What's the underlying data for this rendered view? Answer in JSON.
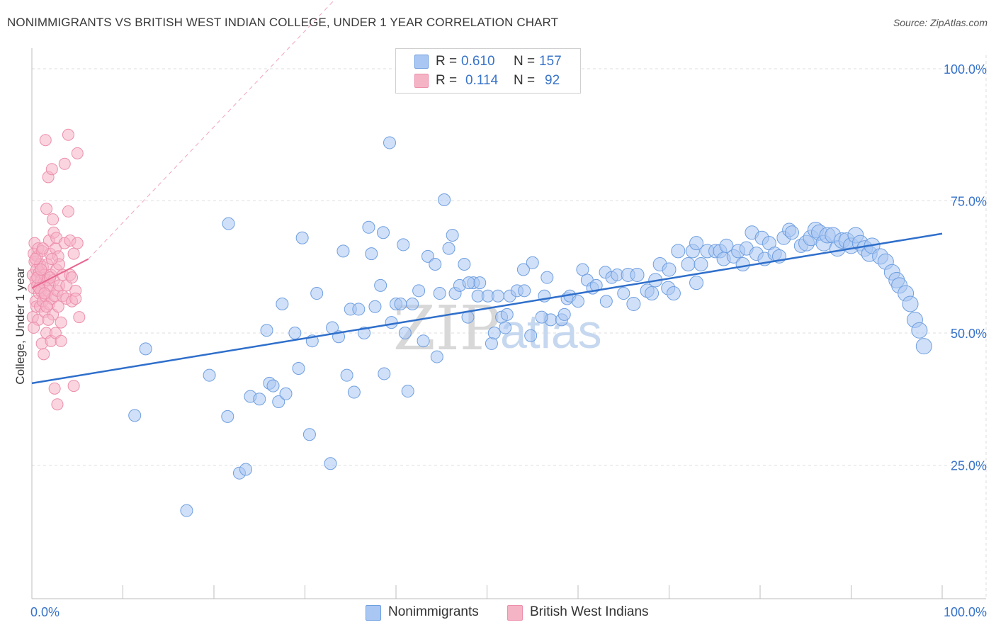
{
  "title": "NONIMMIGRANTS VS BRITISH WEST INDIAN COLLEGE, UNDER 1 YEAR CORRELATION CHART",
  "source": "Source: ZipAtlas.com",
  "watermark": "ZIPatlas",
  "legend": {
    "rows": [
      {
        "r_label": "R =",
        "r_value": "0.610",
        "n_label": "N =",
        "n_value": "157"
      },
      {
        "r_label": "R =",
        "r_value": "0.114",
        "n_label": "N =",
        "n_value": "92"
      }
    ]
  },
  "bottom_legend": [
    "Nonimmigrants",
    "British West Indians"
  ],
  "colors": {
    "blue_fill": "#a9c7f2",
    "blue_stroke": "#6f9fe0",
    "blue_line": "#2f6fcb",
    "pink_fill": "#f5b3c6",
    "pink_stroke": "#ec8fab",
    "pink_line": "#e8668f",
    "tick_text": "#3873c9",
    "grid": "#dedede"
  },
  "chart_data": {
    "type": "scatter",
    "title": "NONIMMIGRANTS VS BRITISH WEST INDIAN COLLEGE, UNDER 1 YEAR CORRELATION CHART",
    "xlabel": "",
    "ylabel": "College, Under 1 year",
    "xlim": [
      0,
      100
    ],
    "ylim": [
      0,
      105
    ],
    "x_tick_labels": [
      "0.0%",
      "100.0%"
    ],
    "y_ticks": [
      25,
      50,
      75,
      100
    ],
    "y_tick_labels": [
      "25.0%",
      "50.0%",
      "75.0%",
      "100.0%"
    ],
    "grid": true,
    "legend_position": "top-center",
    "series": [
      {
        "name": "Nonimmigrants",
        "r": 0.61,
        "n": 157,
        "trend": {
          "x": [
            0,
            100
          ],
          "y": [
            40.5,
            68.8
          ]
        },
        "points": [
          [
            11.3,
            34.4
          ],
          [
            12.5,
            47
          ],
          [
            17,
            16.4
          ],
          [
            19.5,
            42
          ],
          [
            21.5,
            34.2
          ],
          [
            21.6,
            70.7
          ],
          [
            22.8,
            23.5
          ],
          [
            23.5,
            24.2
          ],
          [
            24,
            38
          ],
          [
            25,
            37.5
          ],
          [
            25.8,
            50.5
          ],
          [
            26.1,
            40.5
          ],
          [
            26.5,
            40
          ],
          [
            27.1,
            37
          ],
          [
            27.5,
            55.5
          ],
          [
            27.9,
            38.5
          ],
          [
            28.9,
            50
          ],
          [
            29.3,
            43.3
          ],
          [
            29.7,
            68
          ],
          [
            30.5,
            30.8
          ],
          [
            30.8,
            48.5
          ],
          [
            31.3,
            57.5
          ],
          [
            32.8,
            25.3
          ],
          [
            33,
            51
          ],
          [
            33.7,
            49.3
          ],
          [
            34.2,
            65.5
          ],
          [
            34.6,
            42
          ],
          [
            35,
            54.5
          ],
          [
            35.4,
            38.8
          ],
          [
            35.9,
            54.5
          ],
          [
            36.5,
            50
          ],
          [
            37,
            70
          ],
          [
            37.3,
            65
          ],
          [
            37.7,
            55
          ],
          [
            38.3,
            59
          ],
          [
            38.6,
            69
          ],
          [
            38.7,
            42.3
          ],
          [
            39.3,
            86
          ],
          [
            39.5,
            52
          ],
          [
            40,
            55.5
          ],
          [
            40.5,
            55.5
          ],
          [
            40.8,
            66.7
          ],
          [
            41,
            50
          ],
          [
            41.3,
            39
          ],
          [
            41.8,
            55.5
          ],
          [
            42.5,
            58
          ],
          [
            43,
            48.5
          ],
          [
            43.5,
            64.5
          ],
          [
            44.3,
            63
          ],
          [
            44.5,
            45.5
          ],
          [
            44.8,
            57.5
          ],
          [
            45.3,
            75.2
          ],
          [
            45.8,
            66
          ],
          [
            46.2,
            68.5
          ],
          [
            46.5,
            57.5
          ],
          [
            47,
            59
          ],
          [
            47.5,
            63
          ],
          [
            47.9,
            53
          ],
          [
            48.5,
            59.5
          ],
          [
            49,
            57
          ],
          [
            49.2,
            59.5
          ],
          [
            50.1,
            57
          ],
          [
            50.5,
            48
          ],
          [
            50.8,
            50
          ],
          [
            51.2,
            57
          ],
          [
            51.6,
            53
          ],
          [
            52,
            51
          ],
          [
            52.2,
            53.5
          ],
          [
            52.5,
            57
          ],
          [
            53.3,
            58
          ],
          [
            54,
            62
          ],
          [
            54.1,
            58
          ],
          [
            54.8,
            49.5
          ],
          [
            55,
            63.3
          ],
          [
            56.3,
            57
          ],
          [
            56.6,
            60.5
          ],
          [
            57,
            52.5
          ],
          [
            58.2,
            52.5
          ],
          [
            58.5,
            53.5
          ],
          [
            58.8,
            56.5
          ],
          [
            59.1,
            57
          ],
          [
            60.5,
            62
          ],
          [
            61,
            60
          ],
          [
            61.6,
            58.5
          ],
          [
            62,
            59
          ],
          [
            63,
            61.5
          ],
          [
            63.1,
            56
          ],
          [
            63.7,
            60.5
          ],
          [
            64.3,
            61
          ],
          [
            65,
            57.5
          ],
          [
            65.5,
            61
          ],
          [
            66.1,
            55.5
          ],
          [
            66.5,
            61
          ],
          [
            67.6,
            58
          ],
          [
            68.1,
            57.5
          ],
          [
            68.5,
            60
          ],
          [
            69,
            63
          ],
          [
            69.9,
            58.5
          ],
          [
            70.5,
            57.5
          ],
          [
            71,
            65.5
          ],
          [
            72.1,
            63
          ],
          [
            72.6,
            65.5
          ],
          [
            73,
            59.5
          ],
          [
            73.5,
            63
          ],
          [
            74.2,
            65.5
          ],
          [
            75.1,
            65.5
          ],
          [
            75.6,
            65.5
          ],
          [
            76,
            64
          ],
          [
            76.3,
            66.5
          ],
          [
            77.1,
            64.5
          ],
          [
            77.6,
            65.5
          ],
          [
            78.1,
            63
          ],
          [
            78.5,
            66
          ],
          [
            79.1,
            69
          ],
          [
            79.6,
            65
          ],
          [
            80.2,
            68
          ],
          [
            80.5,
            64
          ],
          [
            81,
            67
          ],
          [
            81.6,
            65
          ],
          [
            82.1,
            64.5
          ],
          [
            82.6,
            68
          ],
          [
            83.2,
            69.5
          ],
          [
            83.5,
            69
          ],
          [
            84.5,
            66.5
          ],
          [
            85.1,
            67
          ],
          [
            85.6,
            68
          ],
          [
            86.1,
            69.5
          ],
          [
            86.5,
            69
          ],
          [
            87,
            67
          ],
          [
            87.4,
            68.5
          ],
          [
            88,
            68.5
          ],
          [
            88.5,
            66
          ],
          [
            89,
            67.5
          ],
          [
            89.5,
            67.5
          ],
          [
            90,
            66.5
          ],
          [
            90.5,
            68.5
          ],
          [
            91,
            67
          ],
          [
            91.5,
            66
          ],
          [
            92,
            65
          ],
          [
            92.3,
            66.5
          ],
          [
            93.2,
            64.5
          ],
          [
            93.8,
            63.5
          ],
          [
            94.5,
            61.5
          ],
          [
            95,
            60
          ],
          [
            95.3,
            59
          ],
          [
            96,
            57.5
          ],
          [
            96.5,
            55.5
          ],
          [
            97,
            52.5
          ],
          [
            97.5,
            50.5
          ],
          [
            98,
            47.5
          ],
          [
            60,
            56
          ],
          [
            48,
            59.5
          ],
          [
            56,
            53
          ],
          [
            70,
            62
          ],
          [
            73,
            67
          ]
        ]
      },
      {
        "name": "British West Indians",
        "r": 0.114,
        "n": 92,
        "trend": {
          "x": [
            0,
            6.2
          ],
          "y": [
            58.5,
            64
          ]
        },
        "points": [
          [
            0.1,
            53
          ],
          [
            0.1,
            61
          ],
          [
            0.2,
            65
          ],
          [
            0.2,
            58.5
          ],
          [
            0.3,
            63.5
          ],
          [
            0.3,
            67
          ],
          [
            0.4,
            56
          ],
          [
            0.4,
            60
          ],
          [
            0.5,
            62
          ],
          [
            0.5,
            55
          ],
          [
            0.6,
            64.5
          ],
          [
            0.6,
            59
          ],
          [
            0.7,
            66
          ],
          [
            0.7,
            52.5
          ],
          [
            0.8,
            61.5
          ],
          [
            0.8,
            57.5
          ],
          [
            0.9,
            63
          ],
          [
            0.9,
            55
          ],
          [
            1.0,
            60
          ],
          [
            1.0,
            58
          ],
          [
            1.1,
            65.5
          ],
          [
            1.1,
            48
          ],
          [
            1.2,
            62.5
          ],
          [
            1.2,
            56
          ],
          [
            1.3,
            59.5
          ],
          [
            1.3,
            46
          ],
          [
            1.4,
            61
          ],
          [
            1.4,
            54
          ],
          [
            1.5,
            86.5
          ],
          [
            1.5,
            57
          ],
          [
            1.6,
            73.5
          ],
          [
            1.6,
            50
          ],
          [
            1.7,
            60
          ],
          [
            1.7,
            63
          ],
          [
            1.8,
            79.5
          ],
          [
            1.8,
            58
          ],
          [
            1.9,
            67.5
          ],
          [
            1.9,
            55.5
          ],
          [
            2.0,
            65
          ],
          [
            2.0,
            59
          ],
          [
            2.1,
            48.5
          ],
          [
            2.1,
            61
          ],
          [
            2.2,
            81
          ],
          [
            2.2,
            56.5
          ],
          [
            2.3,
            71.5
          ],
          [
            2.3,
            53.5
          ],
          [
            2.4,
            69
          ],
          [
            2.4,
            60
          ],
          [
            2.5,
            39.5
          ],
          [
            2.5,
            57
          ],
          [
            2.6,
            66
          ],
          [
            2.6,
            50
          ],
          [
            2.7,
            68
          ],
          [
            2.7,
            62
          ],
          [
            2.8,
            36.5
          ],
          [
            2.8,
            58
          ],
          [
            2.9,
            64.5
          ],
          [
            2.9,
            55
          ],
          [
            3.0,
            59
          ],
          [
            3.0,
            63
          ],
          [
            3.2,
            48.5
          ],
          [
            3.2,
            52
          ],
          [
            3.4,
            61
          ],
          [
            3.4,
            57
          ],
          [
            3.6,
            82
          ],
          [
            3.6,
            67
          ],
          [
            3.8,
            56.5
          ],
          [
            3.8,
            59
          ],
          [
            4.0,
            87.5
          ],
          [
            4.0,
            73
          ],
          [
            4.2,
            67.5
          ],
          [
            4.2,
            61
          ],
          [
            4.4,
            56
          ],
          [
            4.4,
            60.5
          ],
          [
            4.6,
            40
          ],
          [
            4.6,
            65
          ],
          [
            4.8,
            58
          ],
          [
            4.8,
            56.5
          ],
          [
            5.0,
            84
          ],
          [
            5.0,
            67
          ],
          [
            5.2,
            53
          ],
          [
            0.2,
            51
          ],
          [
            0.4,
            64
          ],
          [
            0.6,
            60.5
          ],
          [
            0.8,
            58.5
          ],
          [
            1.0,
            62
          ],
          [
            1.2,
            66
          ],
          [
            1.4,
            57.5
          ],
          [
            1.6,
            55
          ],
          [
            1.8,
            52.5
          ],
          [
            2.0,
            60.5
          ],
          [
            2.2,
            64
          ]
        ]
      }
    ]
  }
}
